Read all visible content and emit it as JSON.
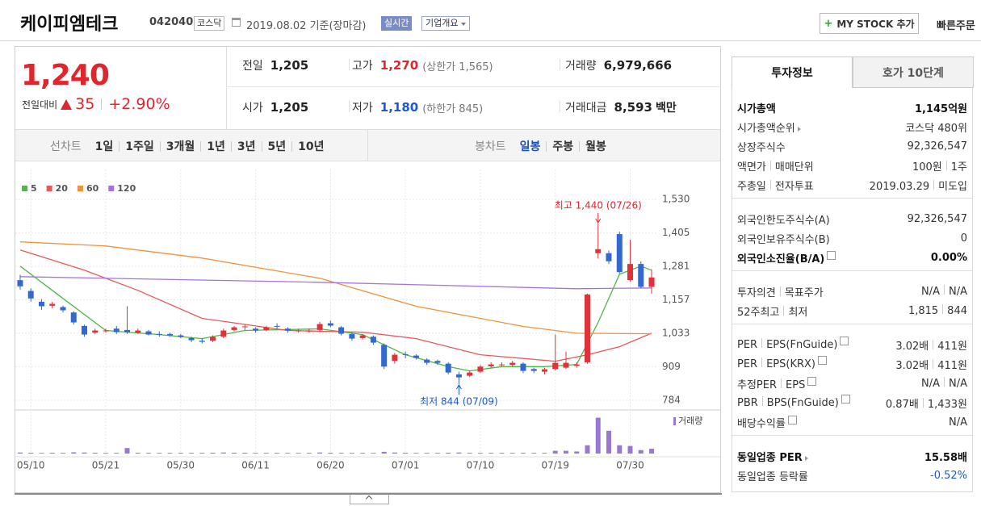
{
  "header": {
    "name": "케이피엠테크",
    "code": "042040",
    "market": "코스닥",
    "date": "2019.08.02 기준(장마감)",
    "realtime": "실시간",
    "overview": "기업개요",
    "my_stock": "MY STOCK 추가",
    "quick_order": "빠른주문"
  },
  "quote": {
    "price": "1,240",
    "change_label": "전일대비",
    "change": "35",
    "change_rate": "+2.90%",
    "rows": [
      [
        {
          "label": "전일",
          "value": "1,205"
        },
        {
          "label": "고가",
          "value": "1,270",
          "note": "(상한가 1,565)",
          "tone": "up"
        },
        {
          "label": "거래량",
          "value": "6,979,666"
        }
      ],
      [
        {
          "label": "시가",
          "value": "1,205"
        },
        {
          "label": "저가",
          "value": "1,180",
          "note": "(하한가 845)",
          "tone": "down"
        },
        {
          "label": "거래대금",
          "value": "8,593",
          "unit": "백만"
        }
      ]
    ]
  },
  "chart_tabs": {
    "line_label": "선차트",
    "line": [
      "1일",
      "1주일",
      "3개월",
      "1년",
      "3년",
      "5년",
      "10년"
    ],
    "candle_label": "봉차트",
    "candle": [
      "일봉",
      "주봉",
      "월봉"
    ],
    "active_candle": 0
  },
  "chart_data": {
    "type": "candlestick",
    "up_color": "#e0323a",
    "down_color": "#3268d0",
    "xlim": [
      -0.45,
      59.45
    ],
    "xticks": [
      {
        "value": 1,
        "label": "05/10"
      },
      {
        "value": 8,
        "label": "05/21"
      },
      {
        "value": 15,
        "label": "05/30"
      },
      {
        "value": 22,
        "label": "06/11"
      },
      {
        "value": 29,
        "label": "06/20"
      },
      {
        "value": 36,
        "label": "07/01"
      },
      {
        "value": 43,
        "label": "07/10"
      },
      {
        "value": 50,
        "label": "07/19"
      },
      {
        "value": 57,
        "label": "07/30"
      }
    ],
    "ylim": [
      757,
      1560
    ],
    "yticks": [
      {
        "value": 784,
        "label": "784"
      },
      {
        "value": 909,
        "label": "909"
      },
      {
        "value": 1033,
        "label": "1,033"
      },
      {
        "value": 1157,
        "label": "1,157"
      },
      {
        "value": 1281,
        "label": "1,281"
      },
      {
        "value": 1405,
        "label": "1,405"
      },
      {
        "value": 1530,
        "label": "1,530"
      }
    ],
    "candles": [
      [
        1230,
        1250,
        1195,
        1207
      ],
      [
        1190,
        1200,
        1150,
        1162
      ],
      [
        1150,
        1160,
        1120,
        1133
      ],
      [
        1135,
        1150,
        1125,
        1142
      ],
      [
        1130,
        1135,
        1110,
        1118
      ],
      [
        1110,
        1115,
        1065,
        1073
      ],
      [
        1060,
        1065,
        1020,
        1028
      ],
      [
        1035,
        1050,
        1030,
        1043
      ],
      [
        1040,
        1050,
        1035,
        1043
      ],
      [
        1050,
        1060,
        1030,
        1037
      ],
      [
        1045,
        1133,
        1030,
        1037
      ],
      [
        1035,
        1050,
        1030,
        1043
      ],
      [
        1040,
        1045,
        1025,
        1028
      ],
      [
        1030,
        1040,
        1020,
        1028
      ],
      [
        1030,
        1035,
        1020,
        1025
      ],
      [
        1025,
        1030,
        1015,
        1019
      ],
      [
        1015,
        1020,
        1000,
        1007
      ],
      [
        1005,
        1015,
        995,
        1001
      ],
      [
        1005,
        1025,
        1000,
        1019
      ],
      [
        1020,
        1050,
        1015,
        1043
      ],
      [
        1045,
        1060,
        1040,
        1055
      ],
      [
        1055,
        1065,
        1045,
        1058
      ],
      [
        1050,
        1055,
        1035,
        1043
      ],
      [
        1045,
        1060,
        1040,
        1055
      ],
      [
        1060,
        1070,
        1050,
        1058
      ],
      [
        1050,
        1055,
        1035,
        1043
      ],
      [
        1040,
        1050,
        1035,
        1043
      ],
      [
        1040,
        1050,
        1035,
        1043
      ],
      [
        1045,
        1075,
        1040,
        1067
      ],
      [
        1070,
        1080,
        1055,
        1061
      ],
      [
        1055,
        1060,
        1025,
        1031
      ],
      [
        1030,
        1035,
        1005,
        1013
      ],
      [
        1015,
        1030,
        1010,
        1025
      ],
      [
        1020,
        1025,
        990,
        998
      ],
      [
        990,
        995,
        900,
        909
      ],
      [
        930,
        960,
        920,
        953
      ],
      [
        955,
        965,
        940,
        953
      ],
      [
        950,
        955,
        935,
        941
      ],
      [
        935,
        940,
        915,
        923
      ],
      [
        930,
        935,
        915,
        923
      ],
      [
        920,
        925,
        880,
        887
      ],
      [
        880,
        890,
        844,
        869
      ],
      [
        875,
        895,
        870,
        887
      ],
      [
        890,
        915,
        885,
        909
      ],
      [
        910,
        925,
        905,
        917
      ],
      [
        915,
        925,
        910,
        917
      ],
      [
        915,
        930,
        910,
        923
      ],
      [
        920,
        925,
        885,
        893
      ],
      [
        900,
        905,
        885,
        893
      ],
      [
        890,
        905,
        880,
        899
      ],
      [
        900,
        1028,
        895,
        923
      ],
      [
        905,
        965,
        900,
        923
      ],
      [
        912,
        925,
        905,
        917
      ],
      [
        925,
        1180,
        920,
        1177
      ],
      [
        1330,
        1440,
        1310,
        1345
      ],
      [
        1330,
        1340,
        1290,
        1300
      ],
      [
        1401,
        1410,
        1255,
        1260
      ],
      [
        1230,
        1380,
        1225,
        1290
      ],
      [
        1290,
        1300,
        1200,
        1205
      ],
      [
        1205,
        1270,
        1180,
        1240
      ]
    ],
    "ma": [
      {
        "name": "5",
        "color": "#4cb848",
        "x": [
          0,
          4,
          8,
          13,
          17,
          21,
          28,
          32,
          36,
          40,
          42,
          45,
          49,
          52,
          54,
          56,
          58,
          59
        ],
        "values": [
          1282,
          1162,
          1043,
          1028,
          1013,
          1043,
          1049,
          1028,
          953,
          909,
          893,
          909,
          909,
          917,
          1073,
          1252,
          1282,
          1267
        ]
      },
      {
        "name": "20",
        "color": "#e8585a",
        "x": [
          0,
          6,
          11,
          17,
          25,
          32,
          37,
          43,
          50,
          53,
          56,
          59
        ],
        "values": [
          1342,
          1267,
          1192,
          1088,
          1043,
          1037,
          1013,
          953,
          929,
          953,
          983,
          1033
        ]
      },
      {
        "name": "60",
        "color": "#f0923a",
        "x": [
          0,
          8,
          17,
          28,
          37,
          47,
          52,
          59
        ],
        "values": [
          1372,
          1357,
          1312,
          1237,
          1133,
          1058,
          1033,
          1031
        ]
      },
      {
        "name": "120",
        "color": "#a474dc",
        "x": [
          0,
          28,
          52,
          59
        ],
        "values": [
          1243,
          1222,
          1198,
          1201
        ]
      }
    ],
    "volume_label": "거래량",
    "volume_color": "#9a78d2",
    "volume_lim": [
      0,
      55000000
    ],
    "volume": [
      1500000,
      1200000,
      1000000,
      1200000,
      1000000,
      1800000,
      1500000,
      1200000,
      1000000,
      1000000,
      8000000,
      1200000,
      1000000,
      1000000,
      1000000,
      1000000,
      1000000,
      1000000,
      1200000,
      1500000,
      1200000,
      1200000,
      1000000,
      1000000,
      1000000,
      1000000,
      1000000,
      1000000,
      1500000,
      1200000,
      1000000,
      1000000,
      1000000,
      1000000,
      2500000,
      1500000,
      1200000,
      1000000,
      1000000,
      1000000,
      1200000,
      1500000,
      1000000,
      1000000,
      1000000,
      1000000,
      1000000,
      1000000,
      1000000,
      1000000,
      4000000,
      4000000,
      3000000,
      12000000,
      52000000,
      33000000,
      12000000,
      11000000,
      5000000,
      6979666
    ],
    "annotations": [
      {
        "text": "최고 1,440 (07/26)",
        "index": 54,
        "value": 1440,
        "tone": "up"
      },
      {
        "text": "최저 844 (07/09)",
        "index": 41,
        "value": 844,
        "tone": "down"
      }
    ]
  },
  "invest": {
    "tabs": [
      "투자정보",
      "호가 10단계"
    ],
    "active_tab": 0,
    "groups": [
      [
        {
          "label": [
            "시가총액"
          ],
          "value": [
            "1,145억원"
          ],
          "bold": true
        },
        {
          "label": [
            "시가총액순위"
          ],
          "arrow": true,
          "value": [
            "코스닥 480위"
          ]
        },
        {
          "label": [
            "상장주식수"
          ],
          "value": [
            "92,326,547"
          ]
        },
        {
          "label": [
            "액면가",
            "매매단위"
          ],
          "value": [
            "100원",
            "1주"
          ]
        },
        {
          "label": [
            "주총일",
            "전자투표"
          ],
          "value": [
            "2019.03.29",
            "미도입"
          ]
        }
      ],
      [
        {
          "label": [
            "외국인한도주식수(A)"
          ],
          "value": [
            "92,326,547"
          ]
        },
        {
          "label": [
            "외국인보유주식수(B)"
          ],
          "value": [
            "0"
          ]
        },
        {
          "label": [
            "외국인소진율(B/A)"
          ],
          "help": true,
          "value": [
            "0.00%"
          ],
          "bold": true
        }
      ],
      [
        {
          "label": [
            "투자의견",
            "목표주가"
          ],
          "value": [
            "N/A",
            "N/A"
          ]
        },
        {
          "label": [
            "52주최고",
            "최저"
          ],
          "value": [
            "1,815",
            "844"
          ]
        }
      ],
      [
        {
          "label": [
            "PER",
            "EPS(FnGuide)"
          ],
          "help": true,
          "value": [
            "3.02배",
            "411원"
          ]
        },
        {
          "label": [
            "PER",
            "EPS(KRX)"
          ],
          "help": true,
          "value": [
            "3.02배",
            "411원"
          ]
        },
        {
          "label": [
            "추정PER",
            "EPS"
          ],
          "help": true,
          "value": [
            "N/A",
            "N/A"
          ]
        },
        {
          "label": [
            "PBR",
            "BPS(FnGuide)"
          ],
          "help": true,
          "value": [
            "0.87배",
            "1,433원"
          ]
        },
        {
          "label": [
            "배당수익률"
          ],
          "help": true,
          "value": [
            "N/A"
          ]
        }
      ],
      [
        {
          "label": [
            "동일업종 PER"
          ],
          "arrow": true,
          "value": [
            "15.58배"
          ],
          "bold": true
        },
        {
          "label": [
            "동일업종 등락률"
          ],
          "value": [
            "-0.52%"
          ],
          "tone": "down"
        }
      ]
    ]
  }
}
